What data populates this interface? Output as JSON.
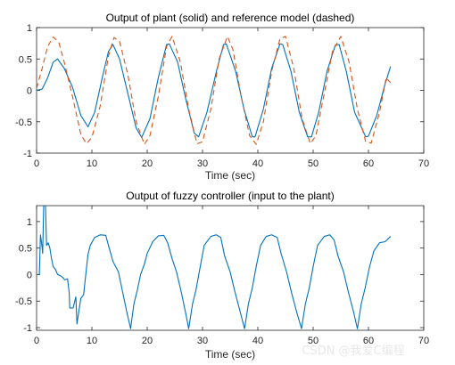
{
  "watermark": "CSDN @我爱C编程",
  "chart_data": [
    {
      "type": "line",
      "title": "Output of plant (solid) and reference model (dashed)",
      "xlabel": "Time (sec)",
      "ylabel": "",
      "xlim": [
        0,
        70
      ],
      "ylim": [
        -1,
        1
      ],
      "xticks": [
        "0",
        "10",
        "20",
        "30",
        "40",
        "50",
        "60",
        "70"
      ],
      "yticks": [
        "-1",
        "-0.5",
        "0",
        "0.5",
        "1"
      ],
      "grid": false,
      "legend": "none",
      "series": [
        {
          "style": "solid",
          "color": "#0072BD",
          "points": [
            [
              0,
              0
            ],
            [
              1,
              0.02
            ],
            [
              2,
              0.2
            ],
            [
              3,
              0.45
            ],
            [
              3.8,
              0.5
            ],
            [
              5,
              0.35
            ],
            [
              6.5,
              0.05
            ],
            [
              8,
              -0.4
            ],
            [
              9.3,
              -0.58
            ],
            [
              10.5,
              -0.35
            ],
            [
              12,
              0.25
            ],
            [
              13,
              0.62
            ],
            [
              13.8,
              0.73
            ],
            [
              15,
              0.5
            ],
            [
              16.5,
              -0.05
            ],
            [
              18,
              -0.6
            ],
            [
              19,
              -0.75
            ],
            [
              20.5,
              -0.45
            ],
            [
              22,
              0.2
            ],
            [
              23.5,
              0.73
            ],
            [
              24,
              0.74
            ],
            [
              25.5,
              0.45
            ],
            [
              27,
              -0.15
            ],
            [
              28.5,
              -0.68
            ],
            [
              29.3,
              -0.74
            ],
            [
              30.8,
              -0.35
            ],
            [
              32.5,
              0.3
            ],
            [
              33.8,
              0.73
            ],
            [
              34.3,
              0.74
            ],
            [
              36,
              0.3
            ],
            [
              37.5,
              -0.3
            ],
            [
              39,
              -0.74
            ],
            [
              39.5,
              -0.74
            ],
            [
              41,
              -0.3
            ],
            [
              42.5,
              0.35
            ],
            [
              44,
              0.74
            ],
            [
              44.5,
              0.73
            ],
            [
              46,
              0.3
            ],
            [
              47.5,
              -0.35
            ],
            [
              49,
              -0.74
            ],
            [
              49.7,
              -0.74
            ],
            [
              51,
              -0.35
            ],
            [
              52.5,
              0.3
            ],
            [
              54,
              0.72
            ],
            [
              54.7,
              0.73
            ],
            [
              56,
              0.3
            ],
            [
              57.5,
              -0.35
            ],
            [
              59.5,
              -0.74
            ],
            [
              60,
              -0.73
            ],
            [
              61.5,
              -0.4
            ],
            [
              63,
              0.1
            ],
            [
              64,
              0.38
            ]
          ]
        },
        {
          "style": "dashed",
          "color": "#D95319",
          "points": [
            [
              0,
              0.03
            ],
            [
              1,
              0.35
            ],
            [
              2,
              0.7
            ],
            [
              3,
              0.85
            ],
            [
              4,
              0.77
            ],
            [
              5,
              0.45
            ],
            [
              6.5,
              -0.1
            ],
            [
              8,
              -0.7
            ],
            [
              9,
              -0.85
            ],
            [
              10,
              -0.75
            ],
            [
              11.5,
              -0.25
            ],
            [
              13,
              0.55
            ],
            [
              14,
              0.84
            ],
            [
              15,
              0.78
            ],
            [
              16.5,
              0.25
            ],
            [
              18,
              -0.5
            ],
            [
              19.5,
              -0.86
            ],
            [
              20.5,
              -0.72
            ],
            [
              22,
              -0.1
            ],
            [
              23.5,
              0.7
            ],
            [
              24.5,
              0.86
            ],
            [
              26,
              0.45
            ],
            [
              27.5,
              -0.3
            ],
            [
              29,
              -0.85
            ],
            [
              30,
              -0.82
            ],
            [
              31.5,
              -0.3
            ],
            [
              33,
              0.5
            ],
            [
              34.5,
              0.86
            ],
            [
              35.5,
              0.65
            ],
            [
              37,
              -0.1
            ],
            [
              38.5,
              -0.72
            ],
            [
              39.7,
              -0.86
            ],
            [
              41,
              -0.5
            ],
            [
              42.5,
              0.3
            ],
            [
              44,
              0.82
            ],
            [
              45,
              0.86
            ],
            [
              46.5,
              0.35
            ],
            [
              48,
              -0.45
            ],
            [
              49.5,
              -0.85
            ],
            [
              50.5,
              -0.72
            ],
            [
              52,
              -0.05
            ],
            [
              53.5,
              0.62
            ],
            [
              55,
              0.86
            ],
            [
              56.5,
              0.45
            ],
            [
              58,
              -0.3
            ],
            [
              59.5,
              -0.82
            ],
            [
              60.5,
              -0.84
            ],
            [
              62,
              -0.35
            ],
            [
              63.2,
              0.2
            ],
            [
              64,
              0.12
            ]
          ]
        }
      ]
    },
    {
      "type": "line",
      "title": "Output of fuzzy controller (input to the plant)",
      "xlabel": "Time (sec)",
      "ylabel": "",
      "xlim": [
        0,
        70
      ],
      "ylim": [
        -1.05,
        1.3
      ],
      "xticks": [
        "0",
        "10",
        "20",
        "30",
        "40",
        "50",
        "60",
        "70"
      ],
      "yticks": [
        "-1",
        "-0.5",
        "0",
        "0.5",
        "1"
      ],
      "grid": false,
      "legend": "none",
      "series": [
        {
          "style": "solid",
          "color": "#0072BD",
          "points": [
            [
              0,
              0
            ],
            [
              0.5,
              0
            ],
            [
              0.7,
              0.75
            ],
            [
              0.9,
              0.6
            ],
            [
              1.1,
              0.4
            ],
            [
              1.3,
              1.35
            ],
            [
              1.6,
              1.35
            ],
            [
              1.8,
              0.55
            ],
            [
              2.1,
              0.6
            ],
            [
              2.4,
              0.5
            ],
            [
              2.7,
              0.3
            ],
            [
              3,
              0.15
            ],
            [
              3.4,
              0.1
            ],
            [
              3.8,
              0
            ],
            [
              4.3,
              -0.02
            ],
            [
              4.7,
              -0.05
            ],
            [
              5.1,
              -0.1
            ],
            [
              5.6,
              -0.08
            ],
            [
              5.9,
              -0.35
            ],
            [
              6,
              -0.63
            ],
            [
              6.6,
              -0.63
            ],
            [
              6.9,
              -0.5
            ],
            [
              7.1,
              -0.42
            ],
            [
              7.3,
              -0.93
            ],
            [
              7.6,
              -0.72
            ],
            [
              8,
              -0.45
            ],
            [
              8.5,
              -0.38
            ],
            [
              9,
              0.1
            ],
            [
              9.3,
              0.38
            ],
            [
              9.7,
              0.55
            ],
            [
              10.5,
              0.7
            ],
            [
              11.5,
              0.75
            ],
            [
              12.5,
              0.74
            ],
            [
              13,
              0.55
            ],
            [
              13.8,
              0.25
            ],
            [
              14.8,
              0.05
            ],
            [
              15.5,
              -0.3
            ],
            [
              16.3,
              -0.7
            ],
            [
              17,
              -1.02
            ],
            [
              17.6,
              -0.55
            ],
            [
              18.2,
              -0.3
            ],
            [
              18.8,
              0
            ],
            [
              19.5,
              0.2
            ],
            [
              20,
              0.4
            ],
            [
              21,
              0.62
            ],
            [
              22,
              0.73
            ],
            [
              23,
              0.74
            ],
            [
              23.7,
              0.6
            ],
            [
              24.5,
              0.3
            ],
            [
              25.3,
              0.05
            ],
            [
              26.2,
              -0.35
            ],
            [
              27,
              -0.75
            ],
            [
              27.5,
              -1.02
            ],
            [
              28.2,
              -0.55
            ],
            [
              28.8,
              -0.3
            ],
            [
              29.5,
              0.1
            ],
            [
              30.3,
              0.55
            ],
            [
              31.5,
              0.72
            ],
            [
              32.5,
              0.75
            ],
            [
              33.3,
              0.7
            ],
            [
              34,
              0.35
            ],
            [
              35,
              0.05
            ],
            [
              35.8,
              -0.3
            ],
            [
              36.8,
              -0.7
            ],
            [
              37.6,
              -1.02
            ],
            [
              38.3,
              -0.55
            ],
            [
              39,
              -0.25
            ],
            [
              39.7,
              0.15
            ],
            [
              40.5,
              0.55
            ],
            [
              41.5,
              0.72
            ],
            [
              42.5,
              0.75
            ],
            [
              43.5,
              0.7
            ],
            [
              44.2,
              0.4
            ],
            [
              45.2,
              0.05
            ],
            [
              46,
              -0.3
            ],
            [
              47,
              -0.7
            ],
            [
              47.9,
              -1.02
            ],
            [
              48.6,
              -0.55
            ],
            [
              49.3,
              -0.25
            ],
            [
              50,
              0.15
            ],
            [
              50.8,
              0.55
            ],
            [
              52,
              0.72
            ],
            [
              53,
              0.75
            ],
            [
              53.8,
              0.65
            ],
            [
              54.5,
              0.35
            ],
            [
              55.5,
              0.05
            ],
            [
              56.3,
              -0.3
            ],
            [
              57.3,
              -0.7
            ],
            [
              58,
              -1.02
            ],
            [
              58.7,
              -0.55
            ],
            [
              59.4,
              -0.25
            ],
            [
              60.2,
              0.15
            ],
            [
              61,
              0.45
            ],
            [
              62,
              0.6
            ],
            [
              63,
              0.62
            ],
            [
              64,
              0.72
            ]
          ]
        }
      ]
    }
  ]
}
